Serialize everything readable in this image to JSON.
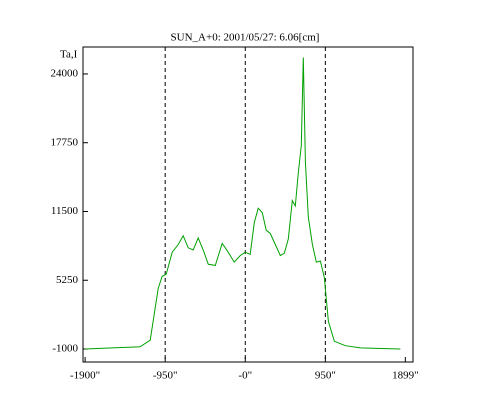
{
  "chart_data": {
    "type": "line",
    "title": "SUN_A+0: 2001/05/27: 6.06[cm]",
    "ylabel": "Ta,I",
    "x": [
      -1900,
      -1247,
      -1128,
      -1033,
      -986,
      -938,
      -867,
      -796,
      -736,
      -677,
      -618,
      -558,
      -499,
      -439,
      -356,
      -273,
      -202,
      -131,
      -59,
      0,
      59,
      107,
      154,
      202,
      249,
      297,
      356,
      416,
      463,
      511,
      558,
      594,
      629,
      665,
      689,
      713,
      748,
      796,
      843,
      891,
      938,
      986,
      1057,
      1188,
      1366,
      1841
    ],
    "series": [
      {
        "color": "#00a000",
        "values": [
          -1000,
          -800,
          -200,
          4500,
          5600,
          5800,
          7800,
          8500,
          9300,
          8200,
          8000,
          9100,
          8000,
          6700,
          6600,
          8600,
          7800,
          6900,
          7500,
          7800,
          7600,
          10500,
          11800,
          11400,
          9800,
          9500,
          8500,
          7500,
          7700,
          9000,
          12500,
          12000,
          15000,
          17500,
          25500,
          16000,
          11000,
          8500,
          6900,
          7000,
          5500,
          1500,
          -300,
          -700,
          -900,
          -1000
        ]
      }
    ],
    "xlim": [
      -1925,
      1990
    ],
    "ylim": [
      -2180,
      26450
    ],
    "xticks": [
      {
        "value": -1900,
        "label": "-1900\""
      },
      {
        "value": -950,
        "label": "-950\""
      },
      {
        "value": 0,
        "label": "-0\""
      },
      {
        "value": 950,
        "label": "950\""
      },
      {
        "value": 1899,
        "label": "1899\""
      }
    ],
    "yticks": [
      -1000,
      5250,
      11500,
      17750,
      24000
    ],
    "reference_lines": [
      -950,
      0,
      950
    ]
  }
}
